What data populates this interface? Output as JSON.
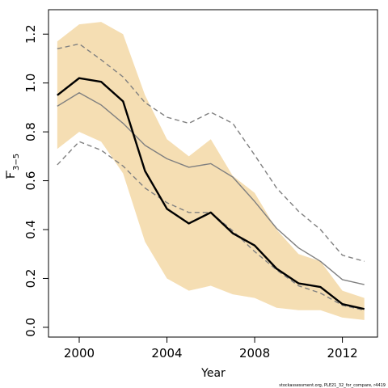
{
  "chart_data": {
    "type": "line",
    "xlabel": "Year",
    "ylabel": "F",
    "ylabel_subscript": "3−5",
    "xlim": [
      1998.6,
      2013.6
    ],
    "ylim": [
      -0.04,
      1.3
    ],
    "x_ticks": [
      2000,
      2004,
      2008,
      2012
    ],
    "x_tick_labels": [
      "2000",
      "2004",
      "2008",
      "2012"
    ],
    "y_ticks": [
      0.0,
      0.2,
      0.4,
      0.6,
      0.8,
      1.0,
      1.2
    ],
    "y_tick_labels": [
      "0.0",
      "0.2",
      "0.4",
      "0.6",
      "0.8",
      "1.0",
      "1.2"
    ],
    "grid": false,
    "credit": "stockassessment.org, PLE21_32_for_compare, r4419",
    "x": [
      1999,
      2000,
      2001,
      2002,
      2003,
      2004,
      2005,
      2006,
      2007,
      2008,
      2009,
      2010,
      2011,
      2012,
      2013
    ],
    "band": {
      "color": "#f5deb3",
      "lower": [
        0.73,
        0.8,
        0.76,
        0.63,
        0.35,
        0.2,
        0.15,
        0.17,
        0.135,
        0.12,
        0.08,
        0.07,
        0.07,
        0.04,
        0.03
      ],
      "upper": [
        1.17,
        1.24,
        1.25,
        1.2,
        0.95,
        0.77,
        0.7,
        0.77,
        0.62,
        0.55,
        0.4,
        0.3,
        0.27,
        0.15,
        0.12
      ]
    },
    "series": [
      {
        "style": "solid-black-thick",
        "color": "#000000",
        "values": [
          0.95,
          1.02,
          1.005,
          0.925,
          0.64,
          0.485,
          0.425,
          0.47,
          0.385,
          0.335,
          0.24,
          0.18,
          0.165,
          0.095,
          0.075
        ]
      },
      {
        "style": "solid-gray",
        "color": "#808080",
        "values": [
          0.905,
          0.96,
          0.91,
          0.835,
          0.745,
          0.69,
          0.655,
          0.67,
          0.615,
          0.515,
          0.405,
          0.325,
          0.27,
          0.195,
          0.175
        ]
      },
      {
        "style": "dashed-gray-upper",
        "color": "#808080",
        "values": [
          1.14,
          1.16,
          1.095,
          1.025,
          0.92,
          0.86,
          0.835,
          0.88,
          0.835,
          0.705,
          0.57,
          0.475,
          0.4,
          0.295,
          0.27
        ]
      },
      {
        "style": "dashed-gray-lower",
        "color": "#808080",
        "values": [
          0.665,
          0.76,
          0.725,
          0.66,
          0.57,
          0.51,
          0.47,
          0.47,
          0.395,
          0.31,
          0.235,
          0.17,
          0.14,
          0.09,
          0.07
        ]
      }
    ]
  }
}
